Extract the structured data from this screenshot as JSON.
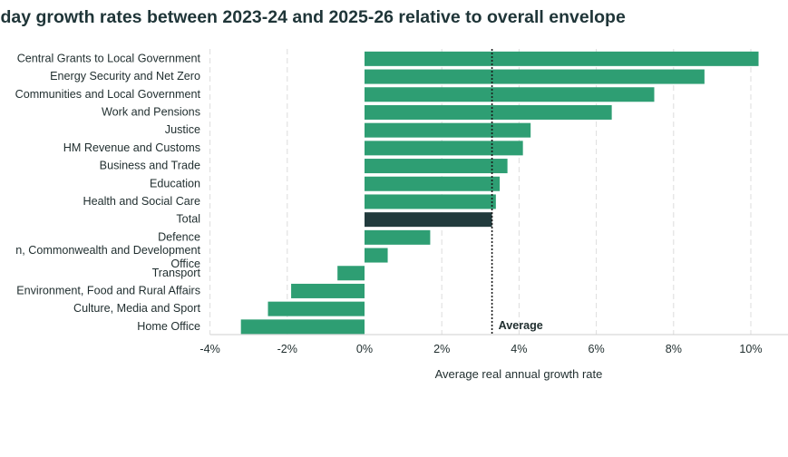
{
  "chart_data": {
    "type": "bar",
    "orientation": "horizontal",
    "title": "-day growth rates between 2023-24 and 2025-26 relative to overall envelope",
    "xlabel": "Average real annual growth rate",
    "ylabel": "",
    "xlim": [
      -4,
      10.5
    ],
    "xticks": [
      "-4%",
      "-2%",
      "0%",
      "2%",
      "4%",
      "6%",
      "8%",
      "10%"
    ],
    "xtick_values": [
      -4,
      -2,
      0,
      2,
      4,
      6,
      8,
      10
    ],
    "grid": "vertical",
    "colors": {
      "bar": "#2e9e73",
      "total": "#223b3d",
      "gridline": "#dddddd",
      "axis": "#cfcfcf",
      "reference": "#1a1a1a"
    },
    "categories": [
      [
        "Central Grants to Local Government"
      ],
      [
        "Energy Security and Net Zero"
      ],
      [
        "Communities and Local Government"
      ],
      [
        "Work and Pensions"
      ],
      [
        "Justice"
      ],
      [
        "HM Revenue and Customs"
      ],
      [
        "Business and Trade"
      ],
      [
        "Education"
      ],
      [
        "Health and Social Care"
      ],
      [
        "Total"
      ],
      [
        "Defence"
      ],
      [
        "n, Commonwealth and Development",
        "Office"
      ],
      [
        "Transport"
      ],
      [
        "Environment, Food and Rural Affairs"
      ],
      [
        "Culture, Media and Sport"
      ],
      [
        "Home Office"
      ]
    ],
    "values": [
      10.2,
      8.8,
      7.5,
      6.4,
      4.3,
      4.1,
      3.7,
      3.5,
      3.4,
      3.3,
      1.7,
      0.6,
      -0.7,
      -1.9,
      -2.5,
      -3.2
    ],
    "highlight": "Total",
    "reference_line": {
      "value": 3.3,
      "label": "Average",
      "style": "dotted"
    }
  }
}
